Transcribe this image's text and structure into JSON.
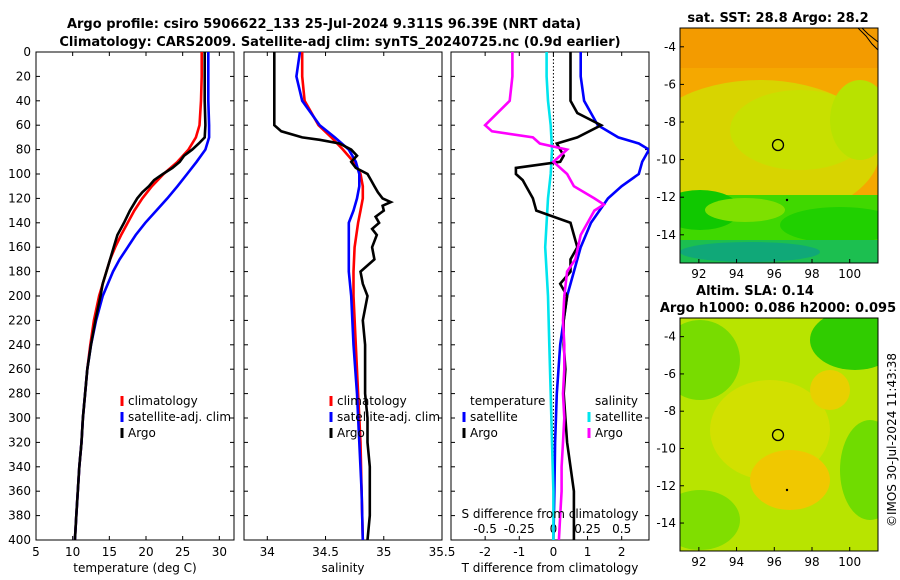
{
  "title": {
    "line1": "Argo profile: csiro 5906622_133 25-Jul-2024 9.311S 96.39E (NRT data)",
    "line2": "Climatology: CARS2009. Satellite-adj clim: synTS_20240725.nc (0.9d earlier)"
  },
  "colors": {
    "climatology": "#ff0000",
    "satellite": "#0000ff",
    "argo": "#000000",
    "salinity_satellite": "#00e5ee",
    "salinity_argo": "#ff00ff"
  },
  "legend": {
    "climatology": "climatology",
    "satellite": "satellite-adj. clim",
    "argo": "Argo",
    "temperature_header": "temperature",
    "salinity_header": "salinity",
    "sat_short": "satellite",
    "argo_short": "Argo"
  },
  "maps": {
    "sst_title": "sat. SST: 28.8 Argo: 28.2",
    "sla_title_1": "Altim. SLA: 0.14",
    "sla_title_2": "Argo h1000: 0.086 h2000: 0.095",
    "x_ticks": [
      "92",
      "94",
      "96",
      "98",
      "100"
    ],
    "y_ticks": [
      "-4",
      "-6",
      "-8",
      "-10",
      "-12",
      "-14"
    ],
    "xlim": [
      91,
      101.5
    ],
    "ylim": [
      -15.5,
      -3
    ]
  },
  "credit": "©IMOS 30-Jul-2024 11:43:38",
  "chart_data": [
    {
      "type": "line",
      "panel": "temperature",
      "xlabel": "temperature (deg C)",
      "ylabel": "",
      "xlim": [
        5,
        32
      ],
      "ylim": [
        400,
        0
      ],
      "x_ticks": [
        "5",
        "10",
        "15",
        "20",
        "25",
        "30"
      ],
      "y_ticks": [
        "0",
        "20",
        "40",
        "60",
        "80",
        "100",
        "120",
        "140",
        "160",
        "180",
        "200",
        "220",
        "240",
        "260",
        "280",
        "300",
        "320",
        "340",
        "360",
        "380",
        "400"
      ],
      "series": [
        {
          "name": "climatology",
          "depth": [
            0,
            20,
            40,
            60,
            70,
            80,
            90,
            100,
            110,
            120,
            130,
            140,
            150,
            160,
            170,
            180,
            200,
            220,
            240,
            260,
            280,
            300,
            320,
            340,
            360,
            380,
            400
          ],
          "values": [
            27.6,
            27.6,
            27.5,
            27.3,
            26.8,
            25.8,
            24.3,
            22.4,
            20.8,
            19.5,
            18.4,
            17.5,
            16.6,
            15.8,
            15.1,
            14.6,
            13.6,
            12.9,
            12.4,
            12.0,
            11.7,
            11.4,
            11.2,
            10.9,
            10.7,
            10.5,
            10.3
          ]
        },
        {
          "name": "satellite-adj. clim",
          "depth": [
            0,
            20,
            40,
            60,
            70,
            80,
            90,
            100,
            110,
            120,
            130,
            140,
            150,
            160,
            170,
            180,
            200,
            220,
            240,
            260,
            280,
            300,
            320,
            340,
            360,
            380,
            400
          ],
          "values": [
            28.5,
            28.5,
            28.5,
            28.6,
            28.6,
            28.1,
            26.9,
            25.6,
            24.3,
            22.9,
            21.4,
            19.9,
            18.6,
            17.5,
            16.4,
            15.5,
            14.1,
            13.2,
            12.5,
            12.0,
            11.7,
            11.4,
            11.2,
            10.9,
            10.7,
            10.5,
            10.3
          ]
        },
        {
          "name": "Argo",
          "depth": [
            0,
            20,
            40,
            60,
            70,
            75,
            80,
            85,
            90,
            95,
            100,
            105,
            110,
            115,
            120,
            130,
            140,
            150,
            160,
            170,
            180,
            190,
            200,
            220,
            240,
            260,
            280,
            300,
            320,
            340,
            360,
            380,
            400
          ],
          "values": [
            28.0,
            28.0,
            28.0,
            28.1,
            28.0,
            27.2,
            26.3,
            25.2,
            24.6,
            23.6,
            22.3,
            21.1,
            20.4,
            19.5,
            18.8,
            17.8,
            17.0,
            16.1,
            15.6,
            15.1,
            14.6,
            14.1,
            13.8,
            13.1,
            12.5,
            12.0,
            11.7,
            11.4,
            11.2,
            10.9,
            10.7,
            10.5,
            10.3
          ]
        }
      ]
    },
    {
      "type": "line",
      "panel": "salinity",
      "xlabel": "salinity",
      "xlim": [
        33.8,
        35.5
      ],
      "ylim": [
        400,
        0
      ],
      "x_ticks": [
        "34",
        "34.5",
        "35",
        "35.5"
      ],
      "x_tick_values": [
        34,
        34.5,
        35,
        35.5
      ],
      "series": [
        {
          "name": "climatology",
          "depth": [
            0,
            20,
            40,
            60,
            70,
            80,
            90,
            100,
            110,
            120,
            130,
            140,
            160,
            180,
            200,
            240,
            280,
            320,
            360,
            400
          ],
          "values": [
            34.3,
            34.3,
            34.32,
            34.44,
            34.55,
            34.65,
            34.74,
            34.8,
            34.82,
            34.82,
            34.8,
            34.78,
            34.75,
            34.74,
            34.74,
            34.76,
            34.78,
            34.8,
            34.81,
            34.82
          ]
        },
        {
          "name": "satellite-adj. clim",
          "depth": [
            0,
            20,
            40,
            60,
            70,
            80,
            90,
            100,
            110,
            120,
            130,
            140,
            160,
            180,
            200,
            240,
            280,
            320,
            360,
            400
          ],
          "values": [
            34.28,
            34.25,
            34.3,
            34.45,
            34.58,
            34.7,
            34.76,
            34.79,
            34.79,
            34.77,
            34.74,
            34.7,
            34.7,
            34.7,
            34.72,
            34.74,
            34.77,
            34.79,
            34.81,
            34.82
          ]
        },
        {
          "name": "Argo",
          "depth": [
            0,
            20,
            40,
            60,
            65,
            70,
            72,
            75,
            80,
            85,
            90,
            95,
            100,
            105,
            110,
            115,
            120,
            123,
            126,
            130,
            135,
            140,
            145,
            150,
            160,
            170,
            180,
            190,
            200,
            220,
            240,
            260,
            280,
            300,
            320,
            340,
            360,
            380,
            400
          ],
          "values": [
            34.06,
            34.06,
            34.06,
            34.06,
            34.12,
            34.3,
            34.45,
            34.62,
            34.72,
            34.77,
            34.72,
            34.76,
            34.86,
            34.89,
            34.92,
            34.95,
            34.99,
            35.06,
            34.99,
            35.0,
            34.93,
            34.96,
            34.9,
            34.94,
            34.9,
            34.92,
            34.8,
            34.82,
            34.86,
            34.82,
            34.84,
            34.84,
            34.84,
            34.86,
            34.86,
            34.88,
            34.88,
            34.88,
            34.86
          ]
        }
      ]
    },
    {
      "type": "line",
      "panel": "difference",
      "xlabel": "T difference from climatology",
      "xlabel_top": "S difference from climatology",
      "xlim": [
        -3,
        2.8
      ],
      "ylim": [
        400,
        0
      ],
      "x_ticks": [
        "-2",
        "-1",
        "0",
        "1",
        "2"
      ],
      "x_tick_values": [
        -2,
        -1,
        0,
        1,
        2
      ],
      "s_ticks": [
        "-0.5",
        "-0.25",
        "0",
        "0.25",
        "0.5"
      ],
      "s_tick_values": [
        -0.5,
        -0.25,
        0,
        0.25,
        0.5
      ],
      "series": [
        {
          "name": "temperature satellite",
          "depth": [
            0,
            20,
            40,
            60,
            70,
            75,
            80,
            85,
            90,
            100,
            110,
            120,
            140,
            160,
            180,
            200,
            240,
            280,
            320,
            360,
            400
          ],
          "values": [
            0.8,
            0.8,
            0.9,
            1.3,
            1.9,
            2.5,
            2.8,
            2.7,
            2.6,
            2.5,
            2.0,
            1.6,
            1.1,
            0.8,
            0.6,
            0.4,
            0.2,
            0.1,
            0.05,
            0.03,
            0.0
          ]
        },
        {
          "name": "temperature Argo",
          "depth": [
            0,
            20,
            40,
            50,
            60,
            70,
            75,
            80,
            85,
            90,
            95,
            100,
            105,
            110,
            120,
            130,
            140,
            150,
            160,
            170,
            180,
            190,
            200,
            220,
            240,
            260,
            280,
            300,
            320,
            340,
            360,
            380,
            400
          ],
          "values": [
            0.5,
            0.5,
            0.5,
            0.7,
            1.4,
            0.7,
            0.1,
            0.2,
            0.3,
            0.2,
            -1.1,
            -1.1,
            -0.9,
            -0.8,
            -0.6,
            -0.5,
            0.5,
            0.6,
            0.7,
            0.5,
            0.5,
            0.2,
            0.4,
            0.3,
            0.3,
            0.35,
            0.3,
            0.35,
            0.4,
            0.5,
            0.6,
            0.6,
            0.6
          ]
        },
        {
          "name": "salinity satellite",
          "depth": [
            0,
            20,
            40,
            60,
            80,
            100,
            120,
            140,
            160,
            200,
            240,
            280,
            320,
            360,
            400
          ],
          "values": [
            -0.05,
            -0.05,
            -0.04,
            -0.02,
            -0.01,
            -0.02,
            -0.04,
            -0.05,
            -0.06,
            -0.04,
            -0.03,
            -0.02,
            -0.01,
            0.0,
            0.0
          ]
        },
        {
          "name": "salinity Argo",
          "depth": [
            0,
            20,
            40,
            60,
            65,
            70,
            75,
            80,
            90,
            100,
            110,
            120,
            125,
            130,
            140,
            150,
            160,
            170,
            180,
            200,
            220,
            240,
            260,
            280,
            300,
            320,
            340,
            360,
            380,
            400
          ],
          "values": [
            -0.3,
            -0.3,
            -0.32,
            -0.5,
            -0.45,
            -0.15,
            -0.1,
            0.1,
            0.0,
            0.1,
            0.15,
            0.3,
            0.37,
            0.3,
            0.25,
            0.2,
            0.18,
            0.16,
            0.1,
            0.08,
            0.07,
            0.08,
            0.08,
            0.07,
            0.08,
            0.07,
            0.06,
            0.06,
            0.05,
            0.04
          ]
        }
      ]
    }
  ]
}
